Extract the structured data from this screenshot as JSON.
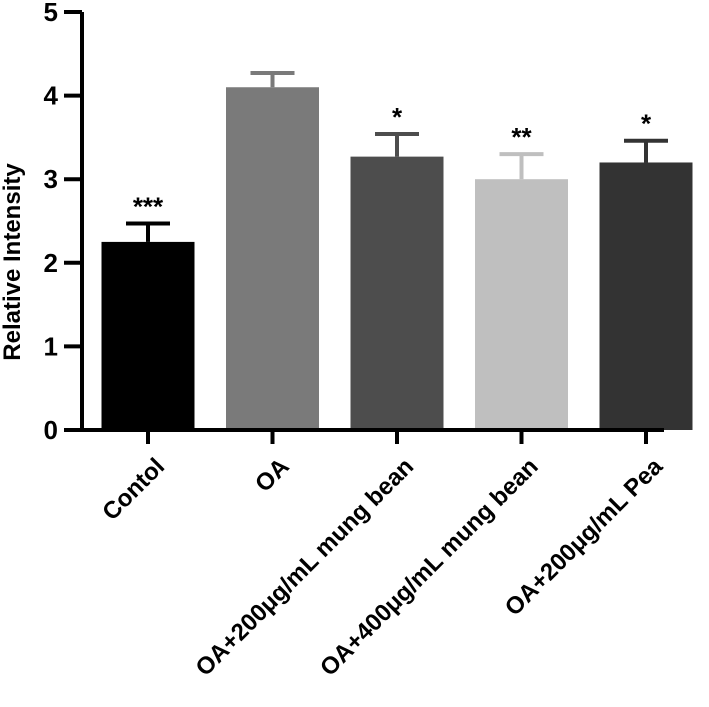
{
  "chart_data": {
    "type": "bar",
    "title": "",
    "xlabel": "",
    "ylabel": "Relative Intensity",
    "ylim": [
      0,
      5
    ],
    "yticks": [
      0,
      1,
      2,
      3,
      4,
      5
    ],
    "categories": [
      "Contol",
      "OA",
      "OA+200μg/mL mung bean",
      "OA+400μg/mL mung bean",
      "OA+200μg/mL Pea"
    ],
    "values": [
      2.25,
      4.1,
      3.27,
      3.0,
      3.2
    ],
    "errors": [
      0.22,
      0.17,
      0.27,
      0.3,
      0.26
    ],
    "significance": [
      "***",
      "",
      "*",
      "**",
      "*"
    ],
    "colors": [
      "#000000",
      "#7a7a7a",
      "#4d4d4d",
      "#bfbfbf",
      "#333333"
    ]
  }
}
